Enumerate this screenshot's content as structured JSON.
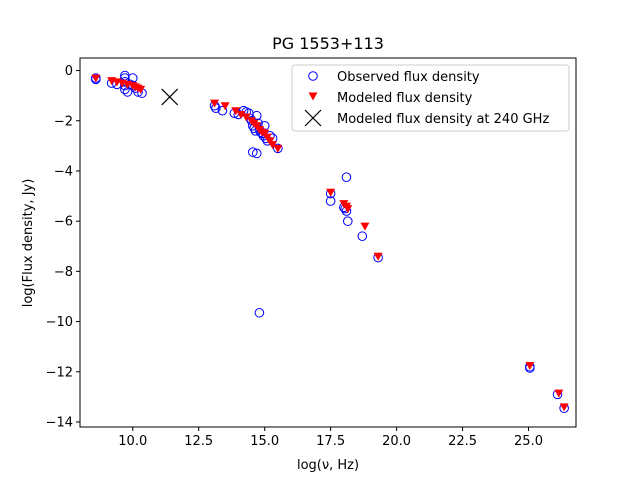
{
  "chart_data": {
    "type": "scatter",
    "title": "PG 1553+113",
    "xlabel": "log(ν, Hz)",
    "ylabel": "log(Flux density, Jy)",
    "xlim": [
      8.0,
      26.8
    ],
    "ylim": [
      -14.2,
      0.5
    ],
    "xticks": [
      10.0,
      12.5,
      15.0,
      17.5,
      20.0,
      22.5,
      25.0
    ],
    "xtick_labels": [
      "10.0",
      "12.5",
      "15.0",
      "17.5",
      "20.0",
      "22.5",
      "25.0"
    ],
    "yticks": [
      0,
      -2,
      -4,
      -6,
      -8,
      -10,
      -12,
      -14
    ],
    "ytick_labels": [
      "0",
      "−2",
      "−4",
      "−6",
      "−8",
      "−10",
      "−12",
      "−14"
    ],
    "legend_position": "top-right",
    "series": [
      {
        "name": "Observed flux density",
        "marker": "open-circle",
        "color": "#0000ff",
        "points": [
          [
            8.6,
            -0.35
          ],
          [
            8.6,
            -0.3
          ],
          [
            9.2,
            -0.5
          ],
          [
            9.4,
            -0.55
          ],
          [
            9.7,
            -0.2
          ],
          [
            9.7,
            -0.3
          ],
          [
            9.7,
            -0.45
          ],
          [
            9.7,
            -0.6
          ],
          [
            9.7,
            -0.75
          ],
          [
            9.8,
            -0.85
          ],
          [
            9.9,
            -0.55
          ],
          [
            10.0,
            -0.3
          ],
          [
            10.0,
            -0.6
          ],
          [
            10.1,
            -0.7
          ],
          [
            10.2,
            -0.85
          ],
          [
            10.35,
            -0.9
          ],
          [
            13.1,
            -1.4
          ],
          [
            13.15,
            -1.5
          ],
          [
            13.4,
            -1.6
          ],
          [
            13.85,
            -1.7
          ],
          [
            14.0,
            -1.75
          ],
          [
            14.2,
            -1.6
          ],
          [
            14.3,
            -1.65
          ],
          [
            14.4,
            -1.7
          ],
          [
            14.45,
            -1.9
          ],
          [
            14.5,
            -2.0
          ],
          [
            14.55,
            -2.2
          ],
          [
            14.6,
            -2.3
          ],
          [
            14.65,
            -2.4
          ],
          [
            14.7,
            -1.8
          ],
          [
            14.75,
            -2.1
          ],
          [
            14.8,
            -2.35
          ],
          [
            14.85,
            -2.45
          ],
          [
            14.9,
            -2.5
          ],
          [
            14.95,
            -2.6
          ],
          [
            15.0,
            -2.2
          ],
          [
            15.05,
            -2.7
          ],
          [
            15.1,
            -2.8
          ],
          [
            15.2,
            -2.6
          ],
          [
            15.3,
            -2.7
          ],
          [
            15.5,
            -3.1
          ],
          [
            14.55,
            -3.25
          ],
          [
            14.7,
            -3.3
          ],
          [
            14.8,
            -9.65
          ],
          [
            17.5,
            -4.9
          ],
          [
            17.5,
            -5.2
          ],
          [
            18.0,
            -5.45
          ],
          [
            18.05,
            -5.5
          ],
          [
            18.1,
            -5.6
          ],
          [
            18.15,
            -6.0
          ],
          [
            18.1,
            -4.25
          ],
          [
            18.7,
            -6.6
          ],
          [
            19.3,
            -7.45
          ],
          [
            25.05,
            -11.8
          ],
          [
            25.05,
            -11.85
          ],
          [
            26.1,
            -12.9
          ],
          [
            26.35,
            -13.45
          ]
        ]
      },
      {
        "name": "Modeled flux density",
        "marker": "triangle-down",
        "color": "#ff0000",
        "points": [
          [
            8.6,
            -0.3
          ],
          [
            9.2,
            -0.4
          ],
          [
            9.4,
            -0.45
          ],
          [
            9.6,
            -0.5
          ],
          [
            9.8,
            -0.55
          ],
          [
            10.0,
            -0.6
          ],
          [
            10.1,
            -0.65
          ],
          [
            10.2,
            -0.7
          ],
          [
            10.3,
            -0.75
          ],
          [
            13.1,
            -1.3
          ],
          [
            13.5,
            -1.4
          ],
          [
            13.9,
            -1.6
          ],
          [
            14.1,
            -1.75
          ],
          [
            14.3,
            -1.85
          ],
          [
            14.5,
            -2.0
          ],
          [
            14.6,
            -2.1
          ],
          [
            14.7,
            -2.2
          ],
          [
            14.8,
            -2.35
          ],
          [
            14.9,
            -2.45
          ],
          [
            15.0,
            -2.5
          ],
          [
            15.1,
            -2.65
          ],
          [
            15.2,
            -2.8
          ],
          [
            15.3,
            -2.95
          ],
          [
            15.5,
            -3.1
          ],
          [
            17.5,
            -4.85
          ],
          [
            18.0,
            -5.3
          ],
          [
            18.1,
            -5.4
          ],
          [
            18.15,
            -5.5
          ],
          [
            18.8,
            -6.2
          ],
          [
            19.3,
            -7.4
          ],
          [
            25.05,
            -11.75
          ],
          [
            26.15,
            -12.85
          ],
          [
            26.35,
            -13.4
          ]
        ]
      },
      {
        "name": "Modeled flux density at 240 GHz",
        "marker": "x",
        "color": "#000000",
        "points": [
          [
            11.4,
            -1.05
          ]
        ]
      }
    ]
  }
}
